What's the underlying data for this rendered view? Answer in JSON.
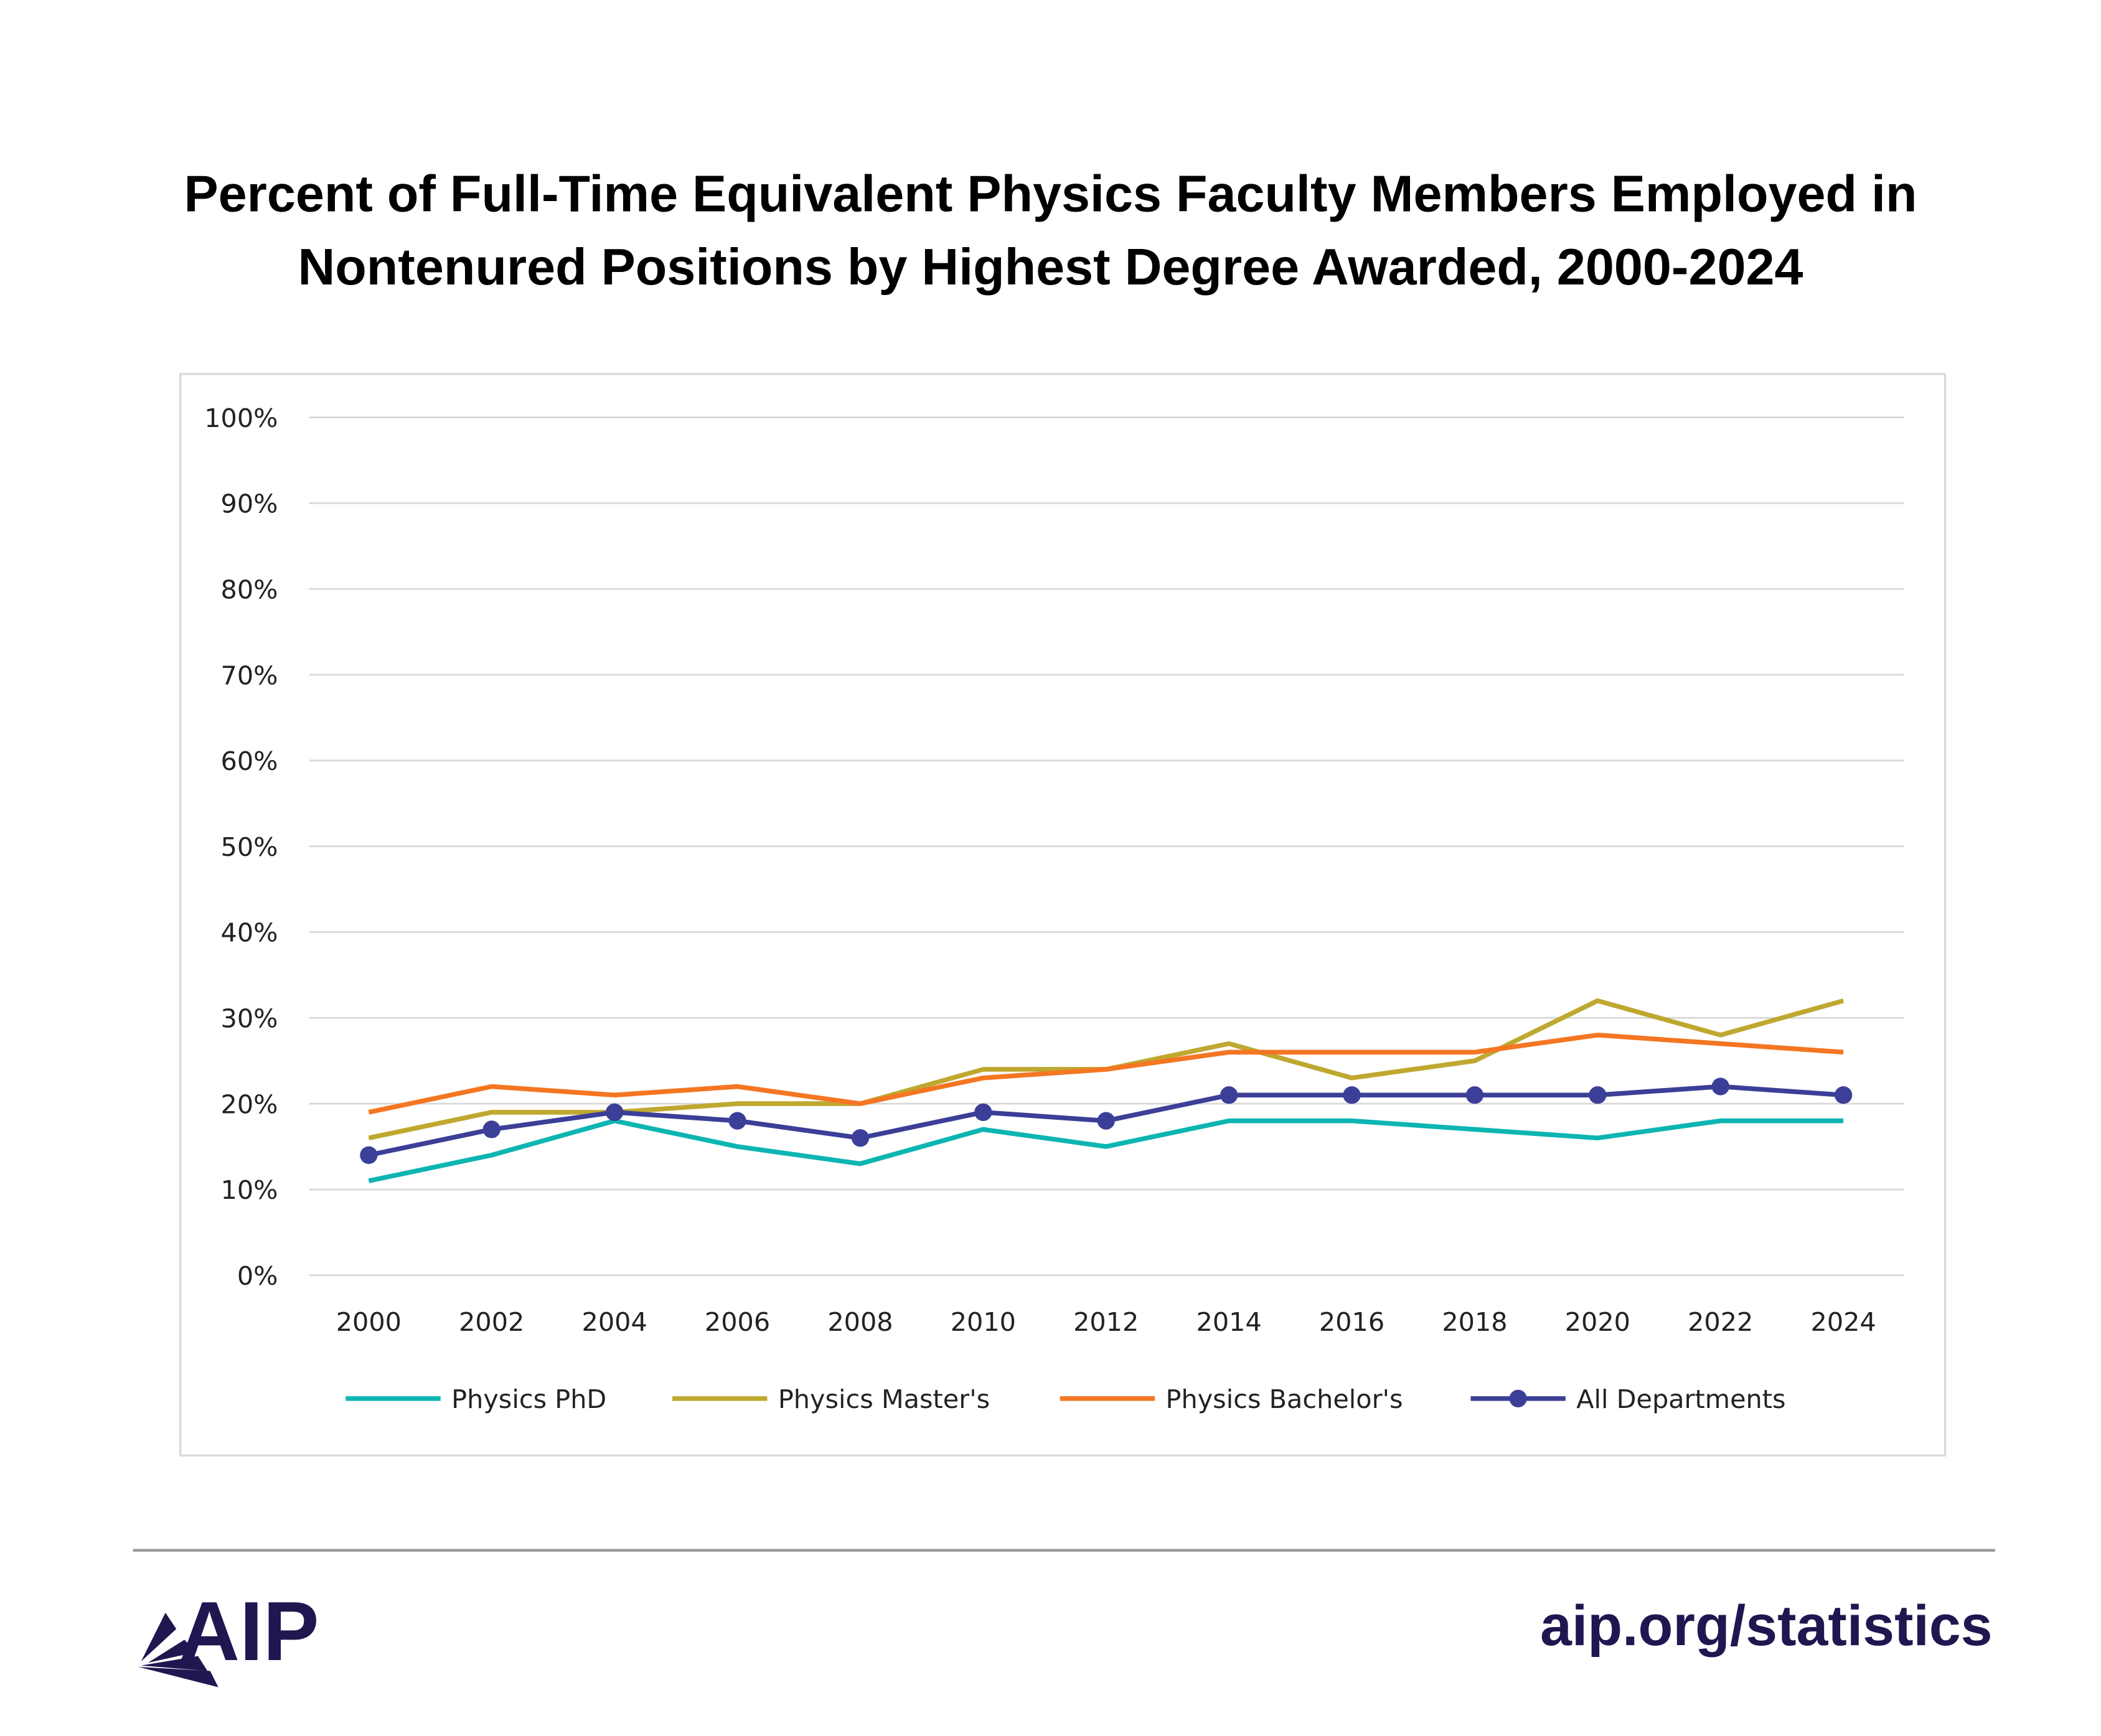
{
  "chart_data": {
    "type": "line",
    "title_lines": [
      "Percent of Full-Time Equivalent Physics Faculty Members Employed in",
      "Nontenured Positions by Highest Degree Awarded, 2000-2024"
    ],
    "xlabel": "",
    "ylabel": "",
    "x": [
      "2000",
      "2002",
      "2004",
      "2006",
      "2008",
      "2010",
      "2012",
      "2014",
      "2016",
      "2018",
      "2020",
      "2022",
      "2024"
    ],
    "ylim": [
      0,
      100
    ],
    "yticks": [
      "0%",
      "10%",
      "20%",
      "30%",
      "40%",
      "50%",
      "60%",
      "70%",
      "80%",
      "90%",
      "100%"
    ],
    "grid": true,
    "legend_position": "bottom",
    "series": [
      {
        "name": "Physics PhD",
        "color": "#0db5b2",
        "markers": false,
        "values": [
          11,
          14,
          18,
          15,
          13,
          17,
          15,
          18,
          18,
          17,
          16,
          18,
          18
        ]
      },
      {
        "name": "Physics Master's",
        "color": "#bfa830",
        "markers": false,
        "values": [
          16,
          19,
          19,
          20,
          20,
          24,
          24,
          27,
          23,
          25,
          32,
          28,
          32
        ]
      },
      {
        "name": "Physics Bachelor's",
        "color": "#f47622",
        "markers": false,
        "values": [
          19,
          22,
          21,
          22,
          20,
          23,
          24,
          26,
          26,
          26,
          28,
          27,
          26
        ]
      },
      {
        "name": "All Departments",
        "color": "#3c3f97",
        "markers": true,
        "values": [
          14,
          17,
          19,
          18,
          16,
          19,
          18,
          21,
          21,
          21,
          21,
          22,
          21
        ]
      }
    ]
  },
  "footer": {
    "logo_text": "AIP",
    "url": "aip.org/statistics"
  }
}
